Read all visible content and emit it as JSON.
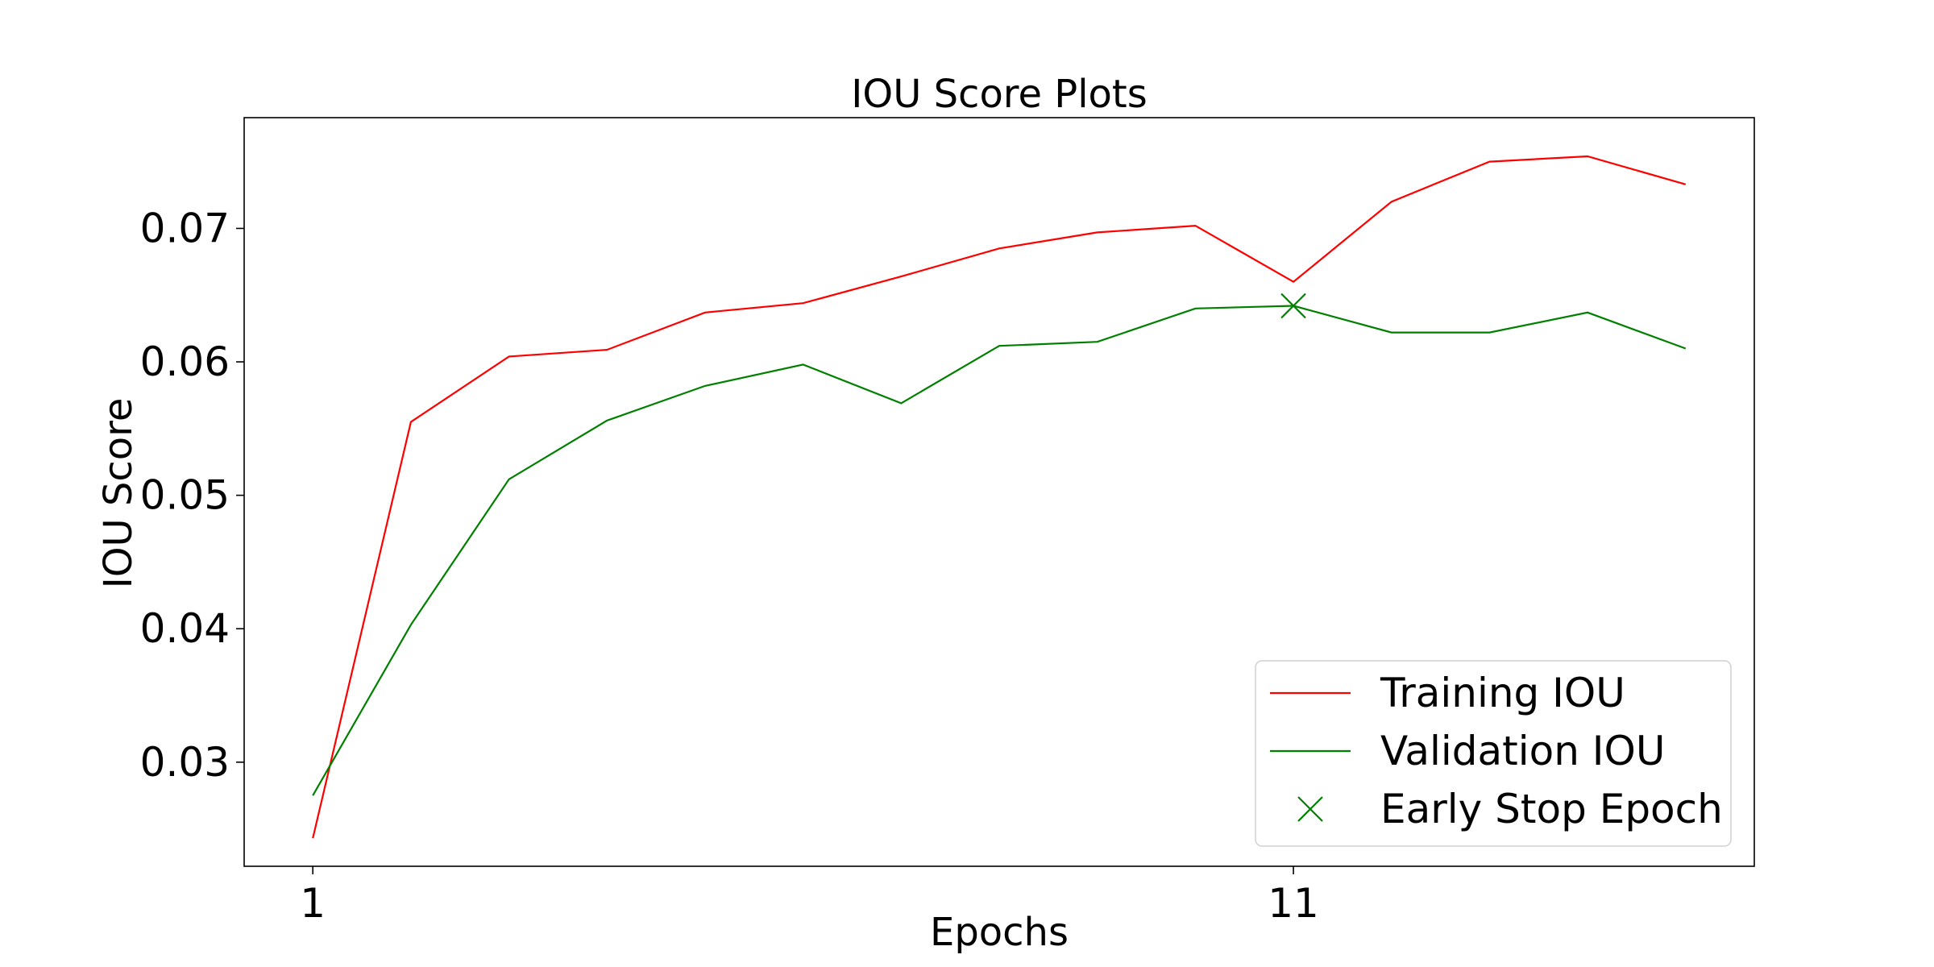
{
  "chart_data": {
    "type": "line",
    "title": "IOU Score Plots",
    "xlabel": "Epochs",
    "ylabel": "IOU Score",
    "x": [
      1,
      2,
      3,
      4,
      5,
      6,
      7,
      8,
      9,
      10,
      11,
      12,
      13,
      14,
      15
    ],
    "xticks": [
      1,
      11
    ],
    "xlim": [
      0.3,
      15.7
    ],
    "yticks": [
      0.03,
      0.04,
      0.05,
      0.06,
      0.07
    ],
    "ylim": [
      0.0222,
      0.0783
    ],
    "grid": false,
    "legend_position": "bottom-right",
    "series": [
      {
        "name": "Training IOU",
        "color": "#ff0000",
        "values": [
          0.0243,
          0.0555,
          0.0604,
          0.0609,
          0.0637,
          0.0644,
          0.0664,
          0.0685,
          0.0697,
          0.0702,
          0.066,
          0.072,
          0.075,
          0.0754,
          0.0733
        ]
      },
      {
        "name": "Validation IOU",
        "color": "#008000",
        "values": [
          0.0275,
          0.0403,
          0.0512,
          0.0556,
          0.0582,
          0.0598,
          0.0569,
          0.0612,
          0.0615,
          0.064,
          0.0642,
          0.0622,
          0.0622,
          0.0637,
          0.061
        ]
      }
    ],
    "markers": [
      {
        "name": "Early Stop Epoch",
        "color": "#008000",
        "symbol": "x",
        "x": 11,
        "y": 0.0642
      }
    ]
  }
}
